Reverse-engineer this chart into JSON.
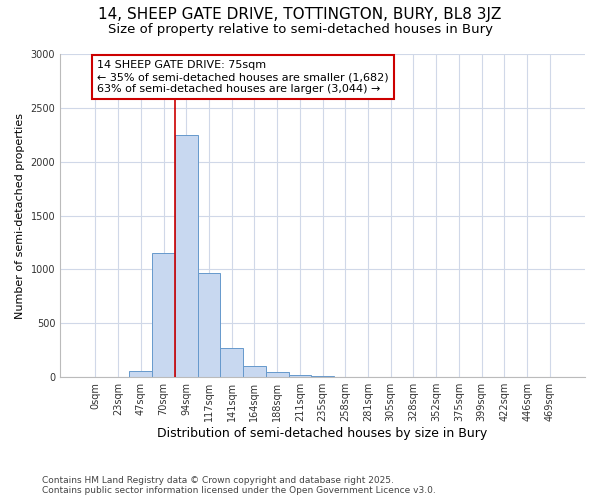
{
  "title1": "14, SHEEP GATE DRIVE, TOTTINGTON, BURY, BL8 3JZ",
  "title2": "Size of property relative to semi-detached houses in Bury",
  "xlabel": "Distribution of semi-detached houses by size in Bury",
  "ylabel": "Number of semi-detached properties",
  "bar_labels": [
    "0sqm",
    "23sqm",
    "47sqm",
    "70sqm",
    "94sqm",
    "117sqm",
    "141sqm",
    "164sqm",
    "188sqm",
    "211sqm",
    "235sqm",
    "258sqm",
    "281sqm",
    "305sqm",
    "328sqm",
    "352sqm",
    "375sqm",
    "399sqm",
    "422sqm",
    "446sqm",
    "469sqm"
  ],
  "bar_values": [
    0,
    0,
    60,
    1150,
    2250,
    970,
    270,
    100,
    50,
    20,
    10,
    5,
    5,
    0,
    0,
    0,
    0,
    0,
    0,
    0,
    0
  ],
  "bar_color": "#c8d8f0",
  "bar_edge_color": "#6699cc",
  "red_line_x": 3.5,
  "annotation_title": "14 SHEEP GATE DRIVE: 75sqm",
  "annotation_line1": "← 35% of semi-detached houses are smaller (1,682)",
  "annotation_line2": "63% of semi-detached houses are larger (3,044) →",
  "annotation_box_color": "#ffffff",
  "annotation_box_edge": "#cc0000",
  "red_line_color": "#cc0000",
  "ylim": [
    0,
    3000
  ],
  "yticks": [
    0,
    500,
    1000,
    1500,
    2000,
    2500,
    3000
  ],
  "footnote1": "Contains HM Land Registry data © Crown copyright and database right 2025.",
  "footnote2": "Contains public sector information licensed under the Open Government Licence v3.0.",
  "bg_color": "#ffffff",
  "plot_bg_color": "#ffffff",
  "title1_fontsize": 11,
  "title2_fontsize": 9.5,
  "grid_color": "#d0d8e8"
}
